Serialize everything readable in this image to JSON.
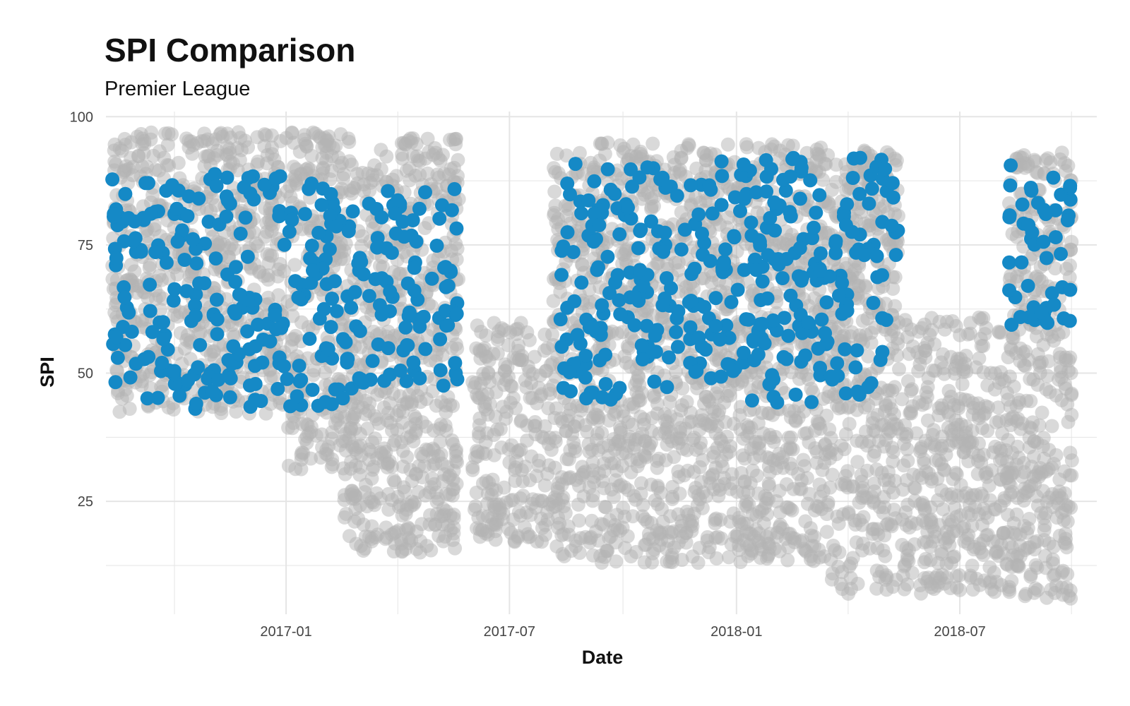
{
  "chart_data": {
    "type": "scatter",
    "title": "SPI Comparison",
    "subtitle": "Premier League",
    "xlabel": "Date",
    "ylabel": "SPI",
    "xlim": [
      "2016-08-08",
      "2018-10-20"
    ],
    "ylim": [
      3,
      101
    ],
    "x_ticks": [
      "2017-01-01",
      "2017-07-01",
      "2018-01-01",
      "2018-07-01"
    ],
    "x_tick_labels": [
      "2017-01",
      "2017-07",
      "2018-01",
      "2018-07"
    ],
    "y_ticks": [
      25,
      50,
      75,
      100
    ],
    "y_tick_labels": [
      "25",
      "50",
      "75",
      "100"
    ],
    "grid": true,
    "legend": "none",
    "colors": {
      "background_series": "#b3b3b3",
      "highlight_series": "#1589c6",
      "grid": "#e5e5e5"
    },
    "series": [
      {
        "role": "background",
        "marker_opacity": 0.5,
        "ranges": [
          {
            "from": "2016-08-13",
            "to": "2016-12-31",
            "y_min": 42,
            "y_max": 97
          },
          {
            "from": "2017-01-01",
            "to": "2017-02-15",
            "y_min": 31,
            "y_max": 97
          },
          {
            "from": "2017-02-15",
            "to": "2017-05-21",
            "y_min": 15,
            "y_max": 96
          },
          {
            "from": "2017-06-01",
            "to": "2017-08-05",
            "y_min": 17,
            "y_max": 60
          },
          {
            "from": "2017-08-05",
            "to": "2017-09-10",
            "y_min": 14,
            "y_max": 93
          },
          {
            "from": "2017-09-10",
            "to": "2017-12-31",
            "y_min": 13,
            "y_max": 95
          },
          {
            "from": "2018-01-01",
            "to": "2018-03-15",
            "y_min": 13,
            "y_max": 95
          },
          {
            "from": "2018-03-15",
            "to": "2018-05-13",
            "y_min": 7,
            "y_max": 94
          },
          {
            "from": "2018-05-15",
            "to": "2018-08-10",
            "y_min": 7,
            "y_max": 61
          },
          {
            "from": "2018-08-10",
            "to": "2018-09-30",
            "y_min": 6,
            "y_max": 93
          }
        ]
      },
      {
        "role": "highlight",
        "marker_opacity": 1,
        "ranges": [
          {
            "from": "2016-08-13",
            "to": "2016-12-31",
            "y_min": 43,
            "y_max": 89
          },
          {
            "from": "2017-01-01",
            "to": "2017-02-28",
            "y_min": 43,
            "y_max": 87
          },
          {
            "from": "2017-02-28",
            "to": "2017-05-21",
            "y_min": 45,
            "y_max": 86
          },
          {
            "from": "2017-08-11",
            "to": "2017-12-31",
            "y_min": 44,
            "y_max": 92
          },
          {
            "from": "2018-01-01",
            "to": "2018-05-13",
            "y_min": 44,
            "y_max": 92
          },
          {
            "from": "2018-08-10",
            "to": "2018-09-30",
            "y_min": 58,
            "y_max": 93
          }
        ]
      }
    ]
  }
}
